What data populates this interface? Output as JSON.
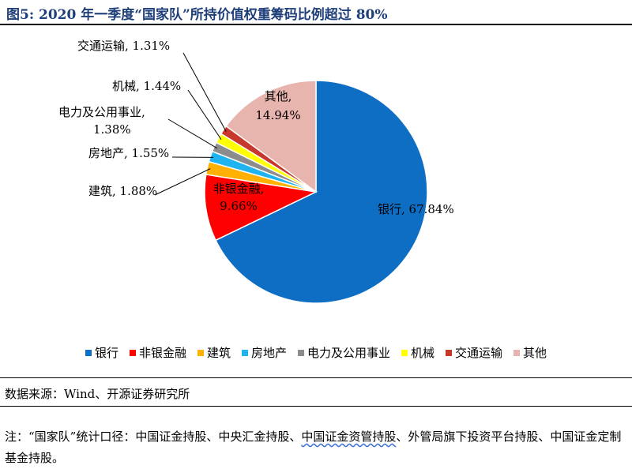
{
  "title": "图5: 2020 年一季度“国家队”所持价值权重筹码比例超过 80%",
  "source": "数据来源：Wind、开源证券研究所",
  "note": {
    "before": "注：“国家队”统计口径：中国证金持股、中央汇金持股、",
    "underlined": "中国证金资管持股",
    "after": "、外管局旗下投资平台持股、中国证金定制基金持股。"
  },
  "chart_data": {
    "type": "pie",
    "title": "",
    "start": "12 o'clock, clockwise",
    "legend_position": "bottom",
    "labels": [
      "银行",
      "非银金融",
      "建筑",
      "房地产",
      "电力及公用事业",
      "机械",
      "交通运输",
      "其他"
    ],
    "values": [
      67.84,
      9.66,
      1.88,
      1.55,
      1.38,
      1.44,
      1.31,
      14.94
    ],
    "value_labels": [
      "67.84%",
      "9.66%",
      "1.88%",
      "1.55%",
      "1.38%",
      "1.44%",
      "1.31%",
      "14.94%"
    ],
    "colors": [
      "#0e6ec4",
      "#ff0000",
      "#ffb000",
      "#1fb4f0",
      "#8c8c8c",
      "#ffff00",
      "#c8372c",
      "#e8b4ae"
    ]
  }
}
